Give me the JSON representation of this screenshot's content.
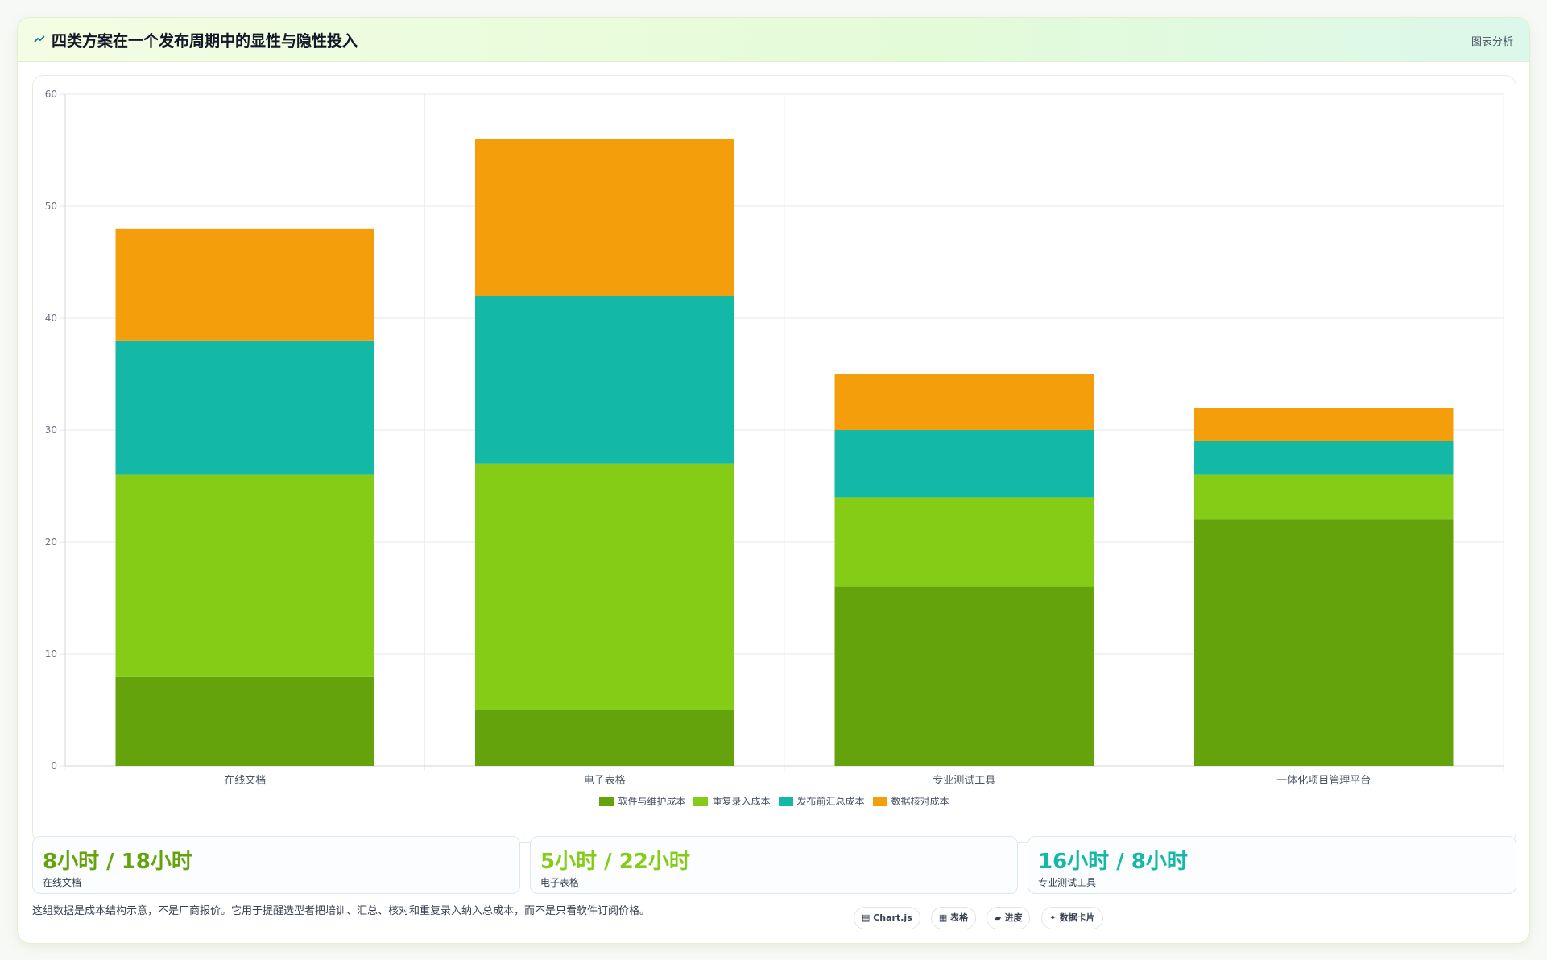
{
  "header": {
    "title": "四类方案在一个发布周期中的显性与隐性投入",
    "right_label": "图表分析"
  },
  "chart_data": {
    "type": "bar",
    "stacked": true,
    "categories": [
      "在线文档",
      "电子表格",
      "专业测试工具",
      "一体化项目管理平台"
    ],
    "series": [
      {
        "name": "软件与维护成本",
        "color": "#65a30d",
        "values": [
          8,
          5,
          16,
          22
        ]
      },
      {
        "name": "重复录入成本",
        "color": "#84cc16",
        "values": [
          18,
          22,
          8,
          4
        ]
      },
      {
        "name": "发布前汇总成本",
        "color": "#14b8a6",
        "values": [
          12,
          15,
          6,
          3
        ]
      },
      {
        "name": "数据核对成本",
        "color": "#f59e0b",
        "values": [
          10,
          14,
          5,
          3
        ]
      }
    ],
    "ylim": [
      0,
      60
    ],
    "yticks": [
      0,
      10,
      20,
      30,
      40,
      50,
      60
    ],
    "grid": true,
    "legend": "bottom"
  },
  "stats": [
    {
      "value": "8小时 / 18小时",
      "label": "在线文档",
      "color": "#65a30d"
    },
    {
      "value": "5小时 / 22小时",
      "label": "电子表格",
      "color": "#84cc16"
    },
    {
      "value": "16小时 / 8小时",
      "label": "专业测试工具",
      "color": "#14b8a6"
    }
  ],
  "footer": {
    "note": "这组数据是成本结构示意，不是厂商报价。它用于提醒选型者把培训、汇总、核对和重复录入纳入总成本，而不是只看软件订阅价格。",
    "tags": [
      "Chart.js",
      "表格",
      "进度",
      "数据卡片"
    ]
  }
}
